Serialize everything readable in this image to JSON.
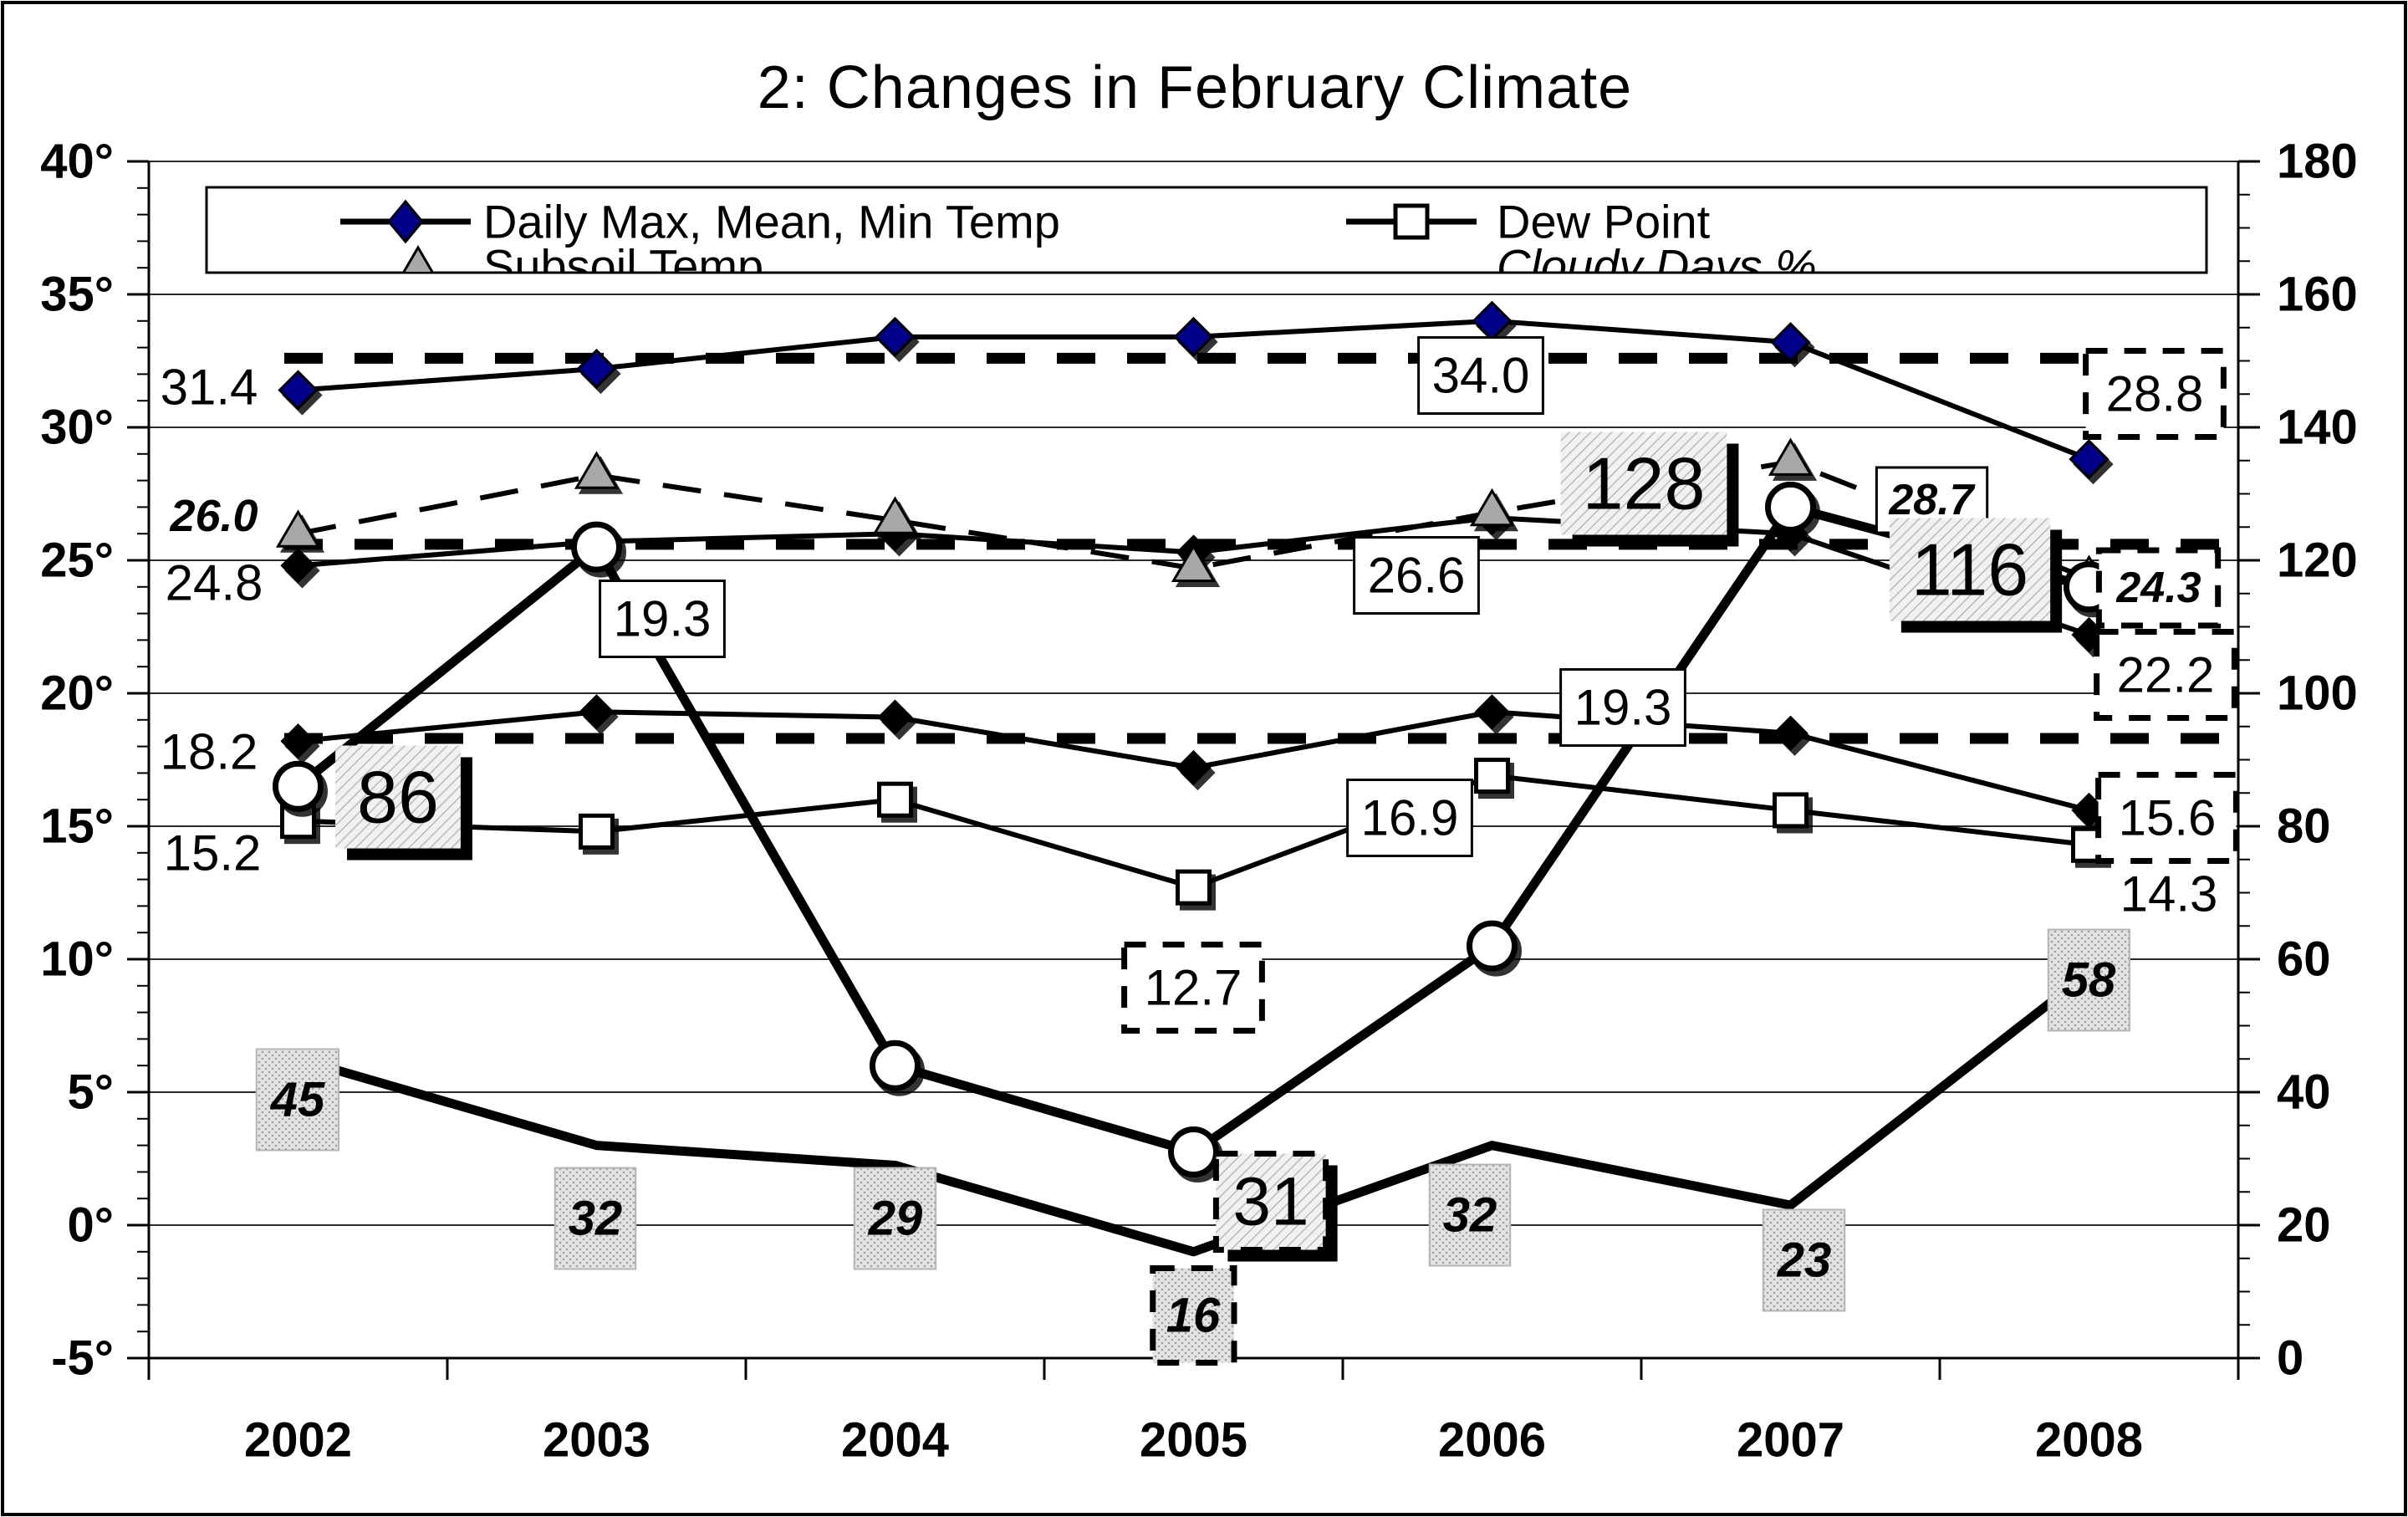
{
  "chart_data": {
    "type": "line",
    "title": "2: Changes in February Climate",
    "categories": [
      "2002",
      "2003",
      "2004",
      "2005",
      "2006",
      "2007",
      "2008"
    ],
    "left_axis": {
      "min": -5,
      "max": 40,
      "step": 5,
      "ticks": [
        "40°",
        "35°",
        "30°",
        "25°",
        "20°",
        "15°",
        "10°",
        "5°",
        "0°",
        "-5°"
      ]
    },
    "right_axis": {
      "min": 0,
      "max": 180,
      "step": 20,
      "ticks": [
        "180",
        "160",
        "140",
        "120",
        "100",
        "80",
        "60",
        "40",
        "20",
        "0"
      ]
    },
    "grid": true,
    "series": [
      {
        "name": "Daily Max Temp",
        "axis": "left",
        "marker": "diamond",
        "marker_fill": "#00008B",
        "line": "solid",
        "width": 6,
        "values": [
          31.4,
          32.2,
          33.4,
          33.4,
          34.0,
          33.2,
          28.8
        ]
      },
      {
        "name": "Daily Mean Temp",
        "axis": "left",
        "marker": "diamond",
        "marker_fill": "#000000",
        "line": "solid",
        "width": 6,
        "values": [
          24.8,
          25.7,
          26.0,
          25.3,
          26.6,
          26.0,
          22.2
        ]
      },
      {
        "name": "Daily Min Temp",
        "axis": "left",
        "marker": "diamond",
        "marker_fill": "#000000",
        "line": "solid",
        "width": 6,
        "values": [
          18.2,
          19.3,
          19.1,
          17.2,
          19.3,
          18.5,
          15.6
        ]
      },
      {
        "name": "Subsoil Temp",
        "axis": "left",
        "marker": "triangle",
        "marker_fill": "#A8A8A8",
        "line": "dashed",
        "width": 6,
        "values": [
          26.0,
          28.2,
          26.5,
          24.7,
          26.8,
          28.7,
          24.3
        ]
      },
      {
        "name": "Dew Point",
        "axis": "left",
        "marker": "square",
        "marker_fill": "#FFFFFF",
        "line": "solid",
        "width": 6,
        "values": [
          15.2,
          14.8,
          16.0,
          12.7,
          16.9,
          15.6,
          14.3
        ]
      },
      {
        "name": "Cloudy Days %",
        "axis": "right",
        "marker": "none",
        "marker_fill": "#000000",
        "line": "solid",
        "width": 11,
        "values": [
          45,
          32,
          29,
          16,
          32,
          23,
          58
        ]
      },
      {
        "name": "",
        "axis": "right",
        "marker": "circle",
        "marker_fill": "#FFFFFF",
        "line": "solid",
        "width": 11,
        "values": [
          86,
          122,
          44,
          31,
          62,
          128,
          116
        ]
      }
    ],
    "reference_lines": [
      {
        "axis": "left",
        "value": 32.6,
        "style": "dashed"
      },
      {
        "axis": "left",
        "value": 25.6,
        "style": "dashed"
      },
      {
        "axis": "left",
        "value": 18.3,
        "style": "dashed"
      }
    ],
    "point_labels": [
      {
        "text": "31.4",
        "style": "plain",
        "x": 250,
        "y": 463
      },
      {
        "text": "26.0",
        "style": "plain-bi",
        "x": 256,
        "y": 617
      },
      {
        "text": "24.8",
        "style": "plain",
        "x": 256,
        "y": 697
      },
      {
        "text": "18.2",
        "style": "plain",
        "x": 250,
        "y": 899
      },
      {
        "text": "15.2",
        "style": "plain",
        "x": 254,
        "y": 1020
      },
      {
        "text": "86",
        "style": "hatch",
        "x": 476,
        "y": 953
      },
      {
        "text": "19.3",
        "style": "box",
        "x": 792,
        "y": 740
      },
      {
        "text": "12.7",
        "style": "dash",
        "x": 1427,
        "y": 1181
      },
      {
        "text": "16",
        "style": "gray-dash",
        "x": 1427,
        "y": 1573
      },
      {
        "text": "31",
        "style": "hatch-dash",
        "x": 1520,
        "y": 1437
      },
      {
        "text": "16.9",
        "style": "box",
        "x": 1686,
        "y": 978
      },
      {
        "text": "26.6",
        "style": "box",
        "x": 1694,
        "y": 688
      },
      {
        "text": "34.0",
        "style": "box",
        "x": 1771,
        "y": 449
      },
      {
        "text": "19.3",
        "style": "box",
        "x": 1941,
        "y": 846
      },
      {
        "text": "128",
        "style": "hatch",
        "x": 1966,
        "y": 578
      },
      {
        "text": "28.7",
        "style": "box-bi",
        "x": 2310,
        "y": 598
      },
      {
        "text": "116",
        "style": "hatch",
        "x": 2356,
        "y": 681
      },
      {
        "text": "24.3",
        "style": "dash-bi",
        "x": 2582,
        "y": 703
      },
      {
        "text": "22.2",
        "style": "dash",
        "x": 2590,
        "y": 807
      },
      {
        "text": "28.8",
        "style": "dash",
        "x": 2577,
        "y": 471
      },
      {
        "text": "15.6",
        "style": "dash",
        "x": 2592,
        "y": 978
      },
      {
        "text": "14.3",
        "style": "plain",
        "x": 2594,
        "y": 1069
      },
      {
        "text": "45",
        "style": "gray",
        "x": 356,
        "y": 1315
      },
      {
        "text": "32",
        "style": "gray",
        "x": 712,
        "y": 1457
      },
      {
        "text": "29",
        "style": "gray",
        "x": 1071,
        "y": 1457
      },
      {
        "text": "32",
        "style": "gray",
        "x": 1758,
        "y": 1453
      },
      {
        "text": "23",
        "style": "gray",
        "x": 2158,
        "y": 1507
      },
      {
        "text": "58",
        "style": "gray",
        "x": 2498,
        "y": 1172
      }
    ],
    "legend": {
      "position": "top",
      "items": [
        {
          "label": "Daily Max, Mean, Min Temp",
          "marker": "diamond-line",
          "italic": false
        },
        {
          "label": "Dew Point",
          "marker": "square-line",
          "italic": false
        },
        {
          "label": "Subsoil Temp",
          "marker": "triangle",
          "italic": false
        },
        {
          "label": "Cloudy Days %",
          "marker": "none",
          "italic": true
        }
      ]
    },
    "colors": {
      "navy_marker": "#00008B",
      "gray_marker": "#A8A8A8",
      "line": "#000000",
      "gridline": "#2b2b2b"
    }
  }
}
